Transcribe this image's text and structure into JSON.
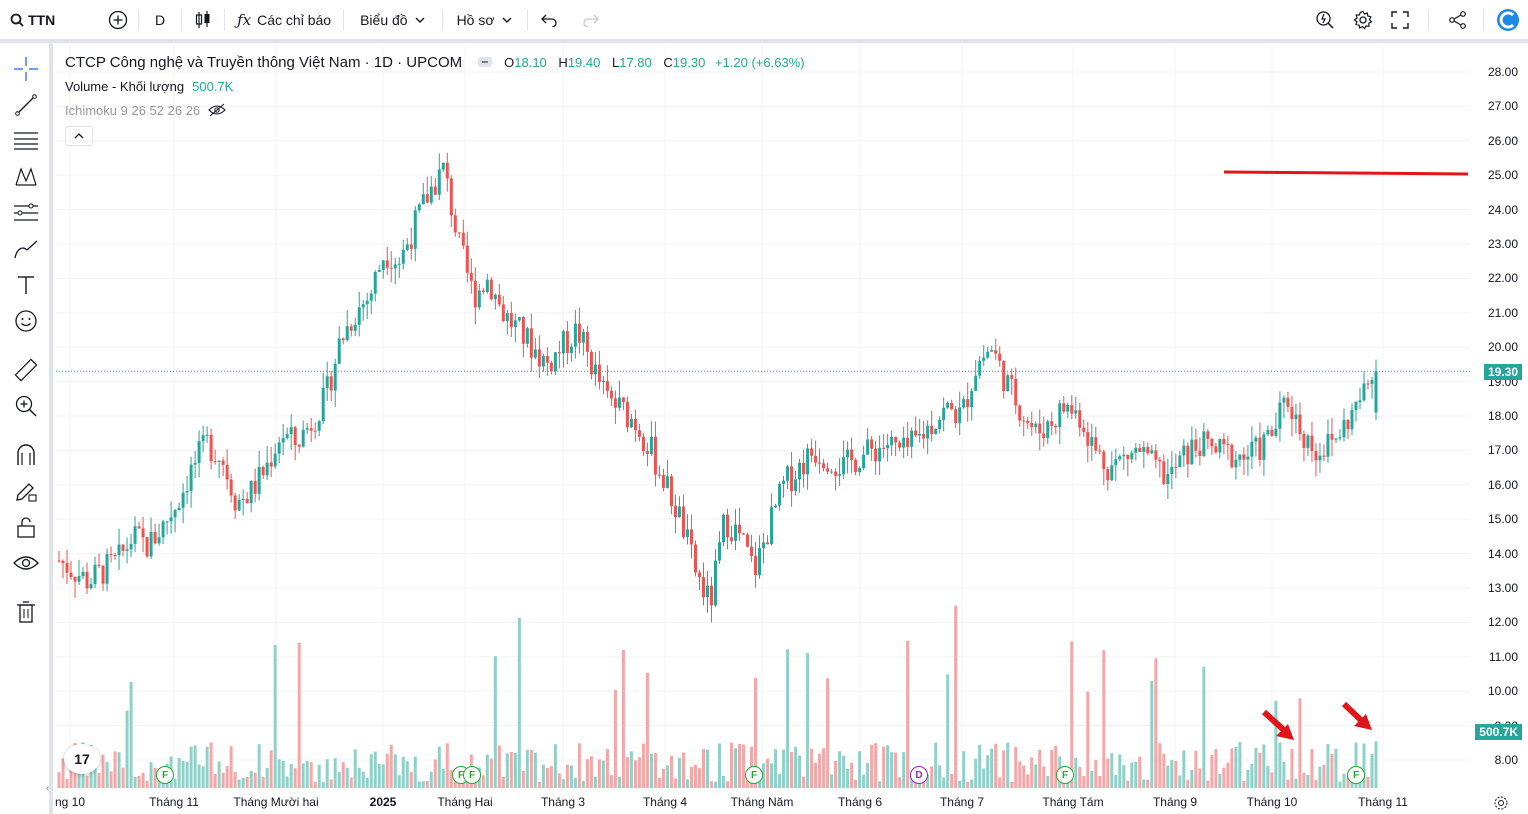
{
  "toolbar": {
    "symbol": "TTN",
    "interval": "D",
    "indicators_label": "Các chỉ báo",
    "chart_type_label": "Biểu đồ",
    "profile_label": "Hồ sơ"
  },
  "legend": {
    "title": "CTCP Công nghệ và Truyền thông Việt Nam · 1D · UPCOM",
    "o_label": "O",
    "o_value": "18.10",
    "h_label": "H",
    "h_value": "19.40",
    "l_label": "L",
    "l_value": "17.80",
    "c_label": "C",
    "c_value": "19.30",
    "change": "+1.20 (+6.63%)",
    "volume_label": "Volume - Khối lượng",
    "volume_value": "500.7K",
    "ichimoku_label": "Ichimoku 9 26 52 26 26"
  },
  "price_axis": [
    "28.00",
    "27.00",
    "26.00",
    "25.00",
    "24.00",
    "23.00",
    "22.00",
    "21.00",
    "20.00",
    "19.00",
    "18.00",
    "17.00",
    "16.00",
    "15.00",
    "14.00",
    "13.00",
    "12.00",
    "11.00",
    "10.00",
    "9.00",
    "8.00"
  ],
  "current_price_badge": "19.30",
  "volume_badge": "500.7K",
  "time_axis": [
    "ng 10",
    "Tháng 11",
    "Tháng Mười hai",
    "2025",
    "Tháng Hai",
    "Tháng 3",
    "Tháng 4",
    "Tháng Năm",
    "Tháng 6",
    "Tháng 7",
    "Tháng Tám",
    "Tháng 9",
    "Tháng 10",
    "Tháng 11"
  ],
  "events": [
    "F",
    "F",
    "F",
    "F",
    "D",
    "F",
    "F"
  ],
  "colors": {
    "up": "#26a69a",
    "down": "#ef5350",
    "up_vol": "#8fd1c8",
    "down_vol": "#f5a6a6",
    "accent": "#2962ff",
    "hline": "#e0161b"
  },
  "chart_data": {
    "type": "candlestick",
    "ylim": [
      8,
      28
    ],
    "horizontal_line": 25.0,
    "last": {
      "open": 18.1,
      "high": 19.4,
      "low": 17.8,
      "close": 19.3,
      "volume": "500.7K"
    },
    "approx_closes": [
      13.8,
      13.5,
      13.2,
      13.5,
      13.8,
      14.5,
      14.2,
      14.8,
      15.5,
      16.5,
      17.2,
      16.8,
      15.5,
      15.8,
      16.5,
      17.5,
      17.2,
      17.8,
      18.5,
      20.2,
      21.0,
      21.5,
      22.8,
      22.5,
      23.5,
      24.5,
      25.2,
      23.0,
      21.5,
      22.0,
      21.0,
      20.5,
      20.0,
      19.5,
      20.0,
      20.5,
      19.5,
      18.5,
      18.2,
      17.8,
      17.0,
      16.0,
      15.0,
      13.5,
      12.5,
      15.0,
      14.5,
      13.5,
      14.8,
      16.0,
      16.5,
      17.0,
      16.8,
      16.5,
      16.8,
      17.0,
      17.2,
      16.9,
      17.3,
      17.8,
      18.2,
      18.0,
      19.5,
      20.0,
      19.0,
      18.2,
      17.5,
      17.8,
      18.3,
      18.0,
      17.0,
      16.5,
      16.8,
      17.0,
      16.5,
      16.2,
      16.8,
      17.2,
      17.0,
      16.9,
      16.8,
      17.0,
      17.5,
      18.5,
      17.5,
      17.0,
      17.2,
      17.8,
      18.5,
      19.3
    ]
  }
}
